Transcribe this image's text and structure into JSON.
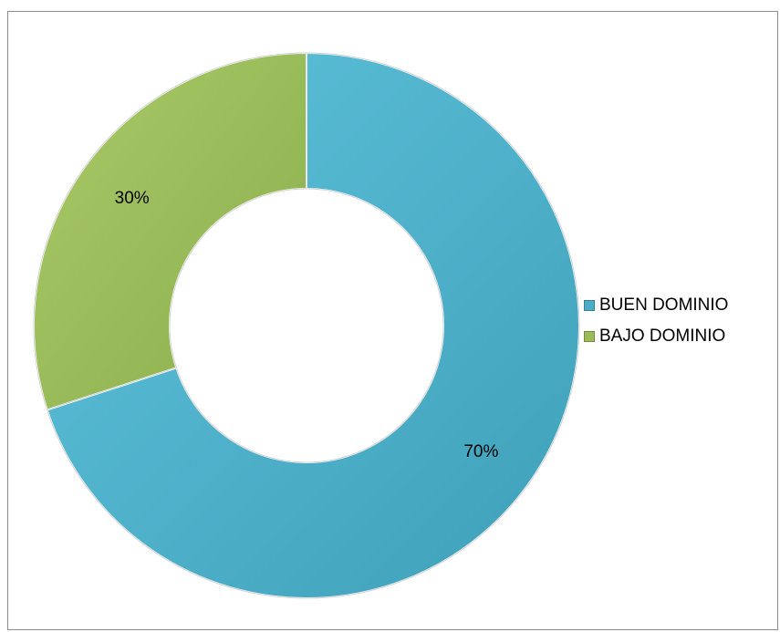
{
  "chart_data": {
    "type": "pie",
    "style": "doughnut",
    "title": "",
    "categories": [
      "BUEN DOMINIO",
      "BAJO DOMINIO"
    ],
    "values": [
      70,
      30
    ],
    "value_labels": [
      "70%",
      "30%"
    ],
    "colors": [
      "#4BACC6",
      "#9BBB59"
    ],
    "legend_position": "right"
  }
}
